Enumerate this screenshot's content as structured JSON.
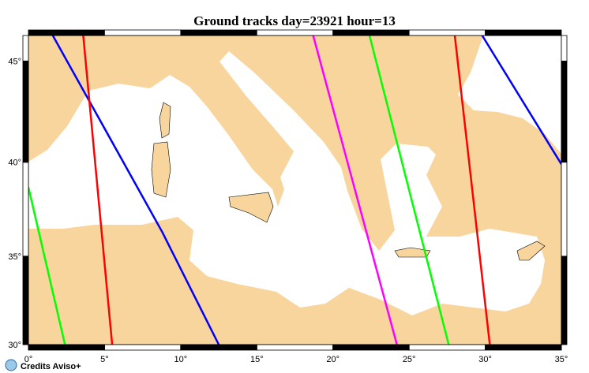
{
  "title": "Ground tracks day=23921 hour=13",
  "credit": "Credits Aviso+",
  "map": {
    "xlim": [
      0,
      35
    ],
    "ylim": [
      30,
      46.2
    ],
    "xticks": [
      {
        "value": 0,
        "label": "0°"
      },
      {
        "value": 5,
        "label": "5°"
      },
      {
        "value": 10,
        "label": "10°"
      },
      {
        "value": 15,
        "label": "15°"
      },
      {
        "value": 20,
        "label": "20°"
      },
      {
        "value": 25,
        "label": "25°"
      },
      {
        "value": 30,
        "label": "30°"
      },
      {
        "value": 35,
        "label": "35°"
      }
    ],
    "yticks": [
      {
        "value": 30,
        "label": "30°"
      },
      {
        "value": 35,
        "label": "35°"
      },
      {
        "value": 40,
        "label": "40°"
      },
      {
        "value": 45,
        "label": "45°"
      }
    ],
    "tracks": [
      {
        "color": "#0000ff",
        "lon": [
          1.6,
          8.8,
          12.5
        ],
        "lat": [
          46.2,
          36.3,
          30
        ]
      },
      {
        "color": "#ff0000",
        "lon": [
          3.6,
          5.5
        ],
        "lat": [
          46.2,
          30
        ]
      },
      {
        "color": "#00ff00",
        "lon": [
          0,
          2.4
        ],
        "lat": [
          38.7,
          30
        ]
      },
      {
        "color": "#ff00ff",
        "lon": [
          18.7,
          24.2
        ],
        "lat": [
          46.2,
          30
        ]
      },
      {
        "color": "#00ff00",
        "lon": [
          22.4,
          27.6
        ],
        "lat": [
          46.2,
          30
        ]
      },
      {
        "color": "#ff0000",
        "lon": [
          28.0,
          30.3
        ],
        "lat": [
          46.2,
          30
        ]
      },
      {
        "color": "#0000ff",
        "lon": [
          29.8,
          35
        ],
        "lat": [
          46.2,
          39.9
        ]
      }
    ]
  }
}
